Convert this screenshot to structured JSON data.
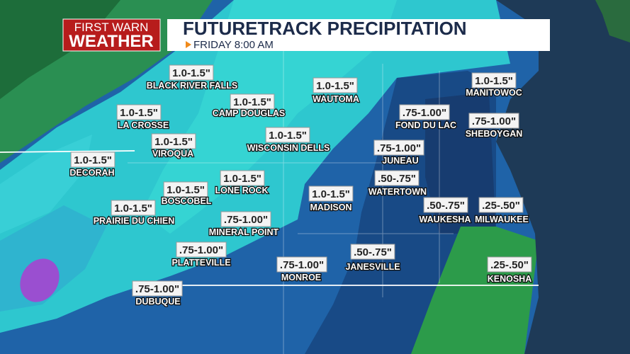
{
  "logo": {
    "line1": "FIRST WARN",
    "line2": "WEATHER"
  },
  "header": {
    "title": "FUTURETRACK PRECIPITATION",
    "subtitle": "FRIDAY 8:00 AM"
  },
  "locations": [
    {
      "amount": "1.0-1.5\"",
      "city": "BLACK RIVER FALLS"
    },
    {
      "amount": "1.0-1.5\"",
      "city": "CAMP DOUGLAS"
    },
    {
      "amount": "1.0-1.5\"",
      "city": "WAUTOMA"
    },
    {
      "amount": "1.0-1.5\"",
      "city": "MANITOWOC"
    },
    {
      "amount": "1.0-1.5\"",
      "city": "LA CROSSE"
    },
    {
      "amount": ".75-1.00\"",
      "city": "FOND DU LAC"
    },
    {
      "amount": ".75-1.00\"",
      "city": "SHEBOYGAN"
    },
    {
      "amount": "1.0-1.5\"",
      "city": "VIROQUA"
    },
    {
      "amount": "1.0-1.5\"",
      "city": "WISCONSIN DELLS"
    },
    {
      "amount": "1.0-1.5\"",
      "city": "DECORAH"
    },
    {
      "amount": ".75-1.00\"",
      "city": "JUNEAU"
    },
    {
      "amount": "1.0-1.5\"",
      "city": "LONE ROCK"
    },
    {
      "amount": ".50-.75\"",
      "city": "WATERTOWN"
    },
    {
      "amount": "1.0-1.5\"",
      "city": "BOSCOBEL"
    },
    {
      "amount": "1.0-1.5\"",
      "city": "MADISON"
    },
    {
      "amount": "1.0-1.5\"",
      "city": "PRAIRIE DU CHIEN"
    },
    {
      "amount": ".50-.75\"",
      "city": "WAUKESHA"
    },
    {
      "amount": ".25-.50\"",
      "city": "MILWAUKEE"
    },
    {
      "amount": ".75-1.00\"",
      "city": "MINERAL POINT"
    },
    {
      "amount": ".75-1.00\"",
      "city": "PLATTEVILLE"
    },
    {
      "amount": ".50-.75\"",
      "city": "JANESVILLE"
    },
    {
      "amount": ".75-1.00\"",
      "city": "MONROE"
    },
    {
      "amount": ".25-.50\"",
      "city": "KENOSHA"
    },
    {
      "amount": ".75-1.00\"",
      "city": "DUBUQUE"
    }
  ]
}
